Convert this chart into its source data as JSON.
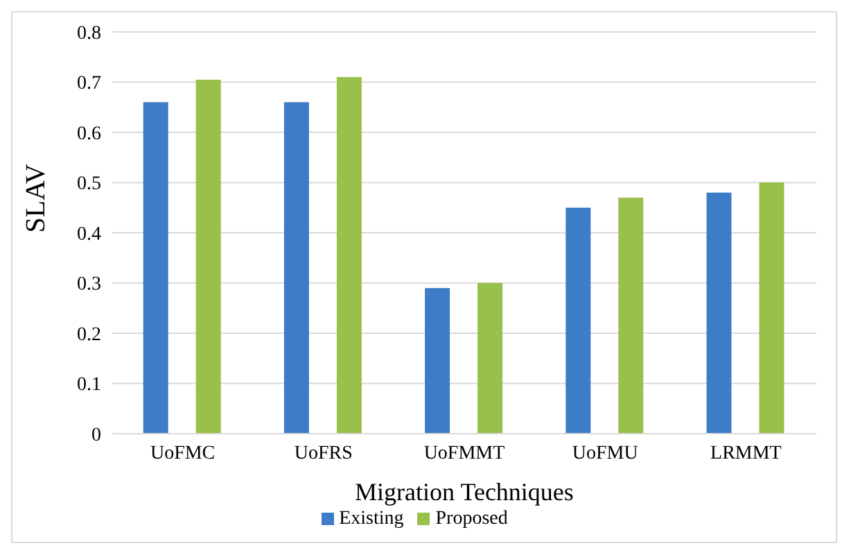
{
  "chart_data": {
    "type": "bar",
    "xlabel": "Migration  Techniques",
    "ylabel": "SLAV",
    "categories": [
      "UoFMC",
      "UoFRS",
      "UoFMMT",
      "UoFMU",
      "LRMMT"
    ],
    "series": [
      {
        "name": "Existing",
        "color": "#3f7cc8",
        "values": [
          0.66,
          0.66,
          0.29,
          0.45,
          0.48
        ]
      },
      {
        "name": "Proposed",
        "color": "#98c04a",
        "values": [
          0.705,
          0.71,
          0.3,
          0.47,
          0.5
        ]
      }
    ],
    "ylim": [
      0,
      0.8
    ],
    "yticks": [
      0,
      0.1,
      0.2,
      0.3,
      0.4,
      0.5,
      0.6,
      0.7,
      0.8
    ],
    "grid": "y",
    "legend": "bottom"
  }
}
